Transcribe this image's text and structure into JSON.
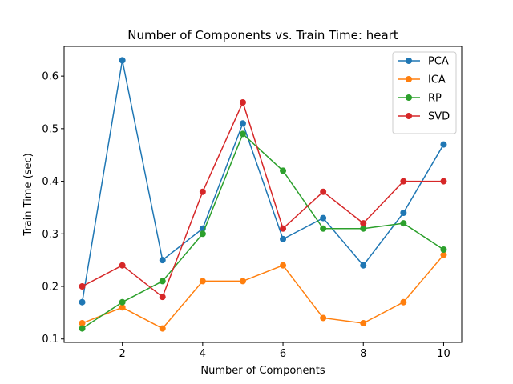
{
  "chart_data": {
    "type": "line",
    "title": "Number of Components vs. Train Time: heart",
    "xlabel": "Number of Components",
    "ylabel": "Train Time (sec)",
    "x": [
      1,
      2,
      3,
      4,
      5,
      6,
      7,
      8,
      9,
      10
    ],
    "xlim": [
      0.55,
      10.45
    ],
    "ylim": [
      0.0935,
      0.6565
    ],
    "xticks": [
      2,
      4,
      6,
      8,
      10
    ],
    "yticks": [
      0.1,
      0.2,
      0.3,
      0.4,
      0.5,
      0.6
    ],
    "xtick_labels": [
      "2",
      "4",
      "6",
      "8",
      "10"
    ],
    "ytick_labels": [
      "0.1",
      "0.2",
      "0.3",
      "0.4",
      "0.5",
      "0.6"
    ],
    "grid": false,
    "legend_position": "top-right",
    "series": [
      {
        "name": "PCA",
        "color": "#1f77b4",
        "values": [
          0.17,
          0.63,
          0.25,
          0.31,
          0.51,
          0.29,
          0.33,
          0.24,
          0.34,
          0.47
        ]
      },
      {
        "name": "ICA",
        "color": "#ff7f0e",
        "values": [
          0.13,
          0.16,
          0.12,
          0.21,
          0.21,
          0.24,
          0.14,
          0.13,
          0.17,
          0.26
        ]
      },
      {
        "name": "RP",
        "color": "#2ca02c",
        "values": [
          0.12,
          0.17,
          0.21,
          0.3,
          0.49,
          0.42,
          0.31,
          0.31,
          0.32,
          0.27
        ]
      },
      {
        "name": "SVD",
        "color": "#d62728",
        "values": [
          0.2,
          0.24,
          0.18,
          0.38,
          0.55,
          0.31,
          0.38,
          0.32,
          0.4,
          0.4
        ]
      }
    ]
  }
}
